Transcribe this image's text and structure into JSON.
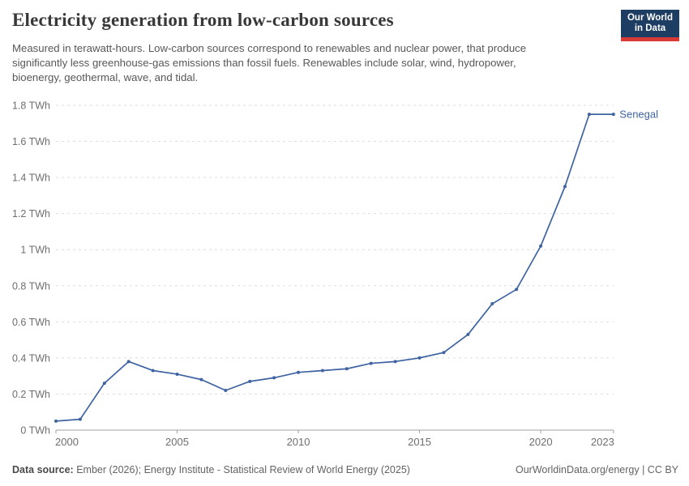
{
  "header": {
    "title": "Electricity generation from low-carbon sources",
    "subtitle": "Measured in terawatt-hours. Low-carbon sources correspond to renewables and nuclear power, that produce\nsignificantly less greenhouse-gas emissions than fossil fuels. Renewables include solar, wind, hydropower,\nbioenergy, geothermal, wave, and tidal.",
    "logo": {
      "line1": "Our World",
      "line2": "in Data",
      "bg_color": "#1d3d63",
      "bar_color": "#d93a35"
    }
  },
  "chart_data": {
    "type": "line",
    "title": "Electricity generation from low-carbon sources",
    "xlabel": "",
    "ylabel": "",
    "unit": "TWh",
    "x": [
      2000,
      2001,
      2002,
      2003,
      2004,
      2005,
      2006,
      2007,
      2008,
      2009,
      2010,
      2011,
      2012,
      2013,
      2014,
      2015,
      2016,
      2017,
      2018,
      2019,
      2020,
      2021,
      2022,
      2023
    ],
    "series": [
      {
        "name": "Senegal",
        "color": "#3e63a2",
        "values": [
          0.05,
          0.06,
          0.26,
          0.38,
          0.33,
          0.31,
          0.28,
          0.22,
          0.27,
          0.29,
          0.32,
          0.33,
          0.34,
          0.37,
          0.38,
          0.4,
          0.43,
          0.53,
          0.7,
          0.78,
          1.02,
          1.35,
          1.75,
          1.75
        ]
      }
    ],
    "xlim": [
      2000,
      2023
    ],
    "ylim": [
      0,
      1.8
    ],
    "xticks": [
      2000,
      2005,
      2010,
      2015,
      2020,
      2023
    ],
    "yticks": [
      {
        "value": 0,
        "label": "0 TWh"
      },
      {
        "value": 0.2,
        "label": "0.2 TWh"
      },
      {
        "value": 0.4,
        "label": "0.4 TWh"
      },
      {
        "value": 0.6,
        "label": "0.6 TWh"
      },
      {
        "value": 0.8,
        "label": "0.8 TWh"
      },
      {
        "value": 1,
        "label": "1 TWh"
      },
      {
        "value": 1.2,
        "label": "1.2 TWh"
      },
      {
        "value": 1.4,
        "label": "1.4 TWh"
      },
      {
        "value": 1.6,
        "label": "1.6 TWh"
      },
      {
        "value": 1.8,
        "label": "1.8 TWh"
      }
    ],
    "grid": "horizontal-dashed",
    "legend_position": "end-of-line",
    "colors": {
      "grid": "#dedede",
      "axis": "#a1a1a1",
      "tick_label": "#6e6e6e"
    }
  },
  "footer": {
    "source_label": "Data source: ",
    "source_text": "Ember (2026); Energy Institute - Statistical Review of World Energy (2025)",
    "attribution": "OurWorldinData.org/energy | CC BY"
  }
}
